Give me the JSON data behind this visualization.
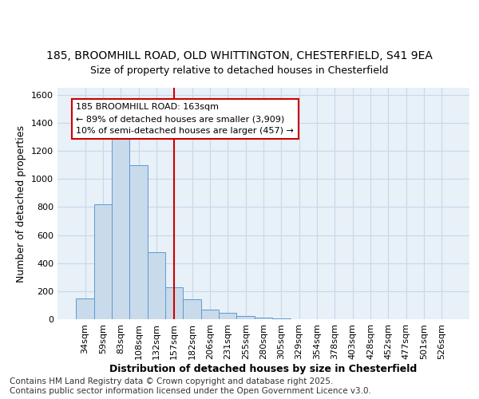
{
  "title_line1": "185, BROOMHILL ROAD, OLD WHITTINGTON, CHESTERFIELD, S41 9EA",
  "title_line2": "Size of property relative to detached houses in Chesterfield",
  "xlabel": "Distribution of detached houses by size in Chesterfield",
  "ylabel": "Number of detached properties",
  "categories": [
    "34sqm",
    "59sqm",
    "83sqm",
    "108sqm",
    "132sqm",
    "157sqm",
    "182sqm",
    "206sqm",
    "231sqm",
    "255sqm",
    "280sqm",
    "305sqm",
    "329sqm",
    "354sqm",
    "378sqm",
    "403sqm",
    "428sqm",
    "452sqm",
    "477sqm",
    "501sqm",
    "526sqm"
  ],
  "values": [
    150,
    820,
    1300,
    1100,
    480,
    230,
    140,
    70,
    45,
    20,
    10,
    5,
    2,
    1,
    1,
    0,
    0,
    0,
    0,
    0,
    0
  ],
  "bar_facecolor": "#c9daea",
  "bar_edgecolor": "#5b9bd5",
  "vline_x_index": 5,
  "vline_color": "#cc0000",
  "annotation_text": "185 BROOMHILL ROAD: 163sqm\n← 89% of detached houses are smaller (3,909)\n10% of semi-detached houses are larger (457) →",
  "annotation_box_edgecolor": "#cc0000",
  "annotation_box_facecolor": "white",
  "ylim": [
    0,
    1650
  ],
  "yticks": [
    0,
    200,
    400,
    600,
    800,
    1000,
    1200,
    1400,
    1600
  ],
  "grid_color": "#c8d8e8",
  "background_color": "#e8f0f8",
  "footer_text": "Contains HM Land Registry data © Crown copyright and database right 2025.\nContains public sector information licensed under the Open Government Licence v3.0.",
  "title_fontsize": 10,
  "subtitle_fontsize": 9,
  "axis_label_fontsize": 9,
  "tick_fontsize": 8,
  "footer_fontsize": 7.5
}
